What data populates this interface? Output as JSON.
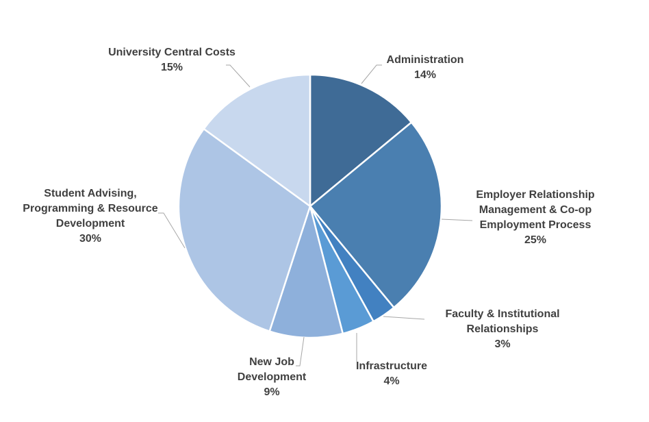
{
  "chart_data": {
    "type": "pie",
    "title": "",
    "start_angle_deg": 0,
    "direction": "clockwise",
    "slices": [
      {
        "key": "administration",
        "label": [
          "Administration"
        ],
        "value": 14,
        "value_label": "14%",
        "color": "#3f6b96"
      },
      {
        "key": "employer-relationship",
        "label": [
          "Employer Relationship",
          "Management & Co-op",
          "Employment Process"
        ],
        "value": 25,
        "value_label": "25%",
        "color": "#4a7fb0"
      },
      {
        "key": "faculty-institutional",
        "label": [
          "Faculty & Institutional",
          "Relationships"
        ],
        "value": 3,
        "value_label": "3%",
        "color": "#4281c1"
      },
      {
        "key": "infrastructure",
        "label": [
          "Infrastructure"
        ],
        "value": 4,
        "value_label": "4%",
        "color": "#5a9bd5"
      },
      {
        "key": "new-job-development",
        "label": [
          "New Job",
          "Development"
        ],
        "value": 9,
        "value_label": "9%",
        "color": "#8eb0db"
      },
      {
        "key": "student-advising",
        "label": [
          "Student Advising,",
          "Programming & Resource",
          "Development"
        ],
        "value": 30,
        "value_label": "30%",
        "color": "#adc5e5"
      },
      {
        "key": "university-central-costs",
        "label": [
          "University Central Costs"
        ],
        "value": 15,
        "value_label": "15%",
        "color": "#c8d8ee"
      }
    ],
    "legend": "none",
    "data_labels": "outside-with-leader-lines"
  }
}
